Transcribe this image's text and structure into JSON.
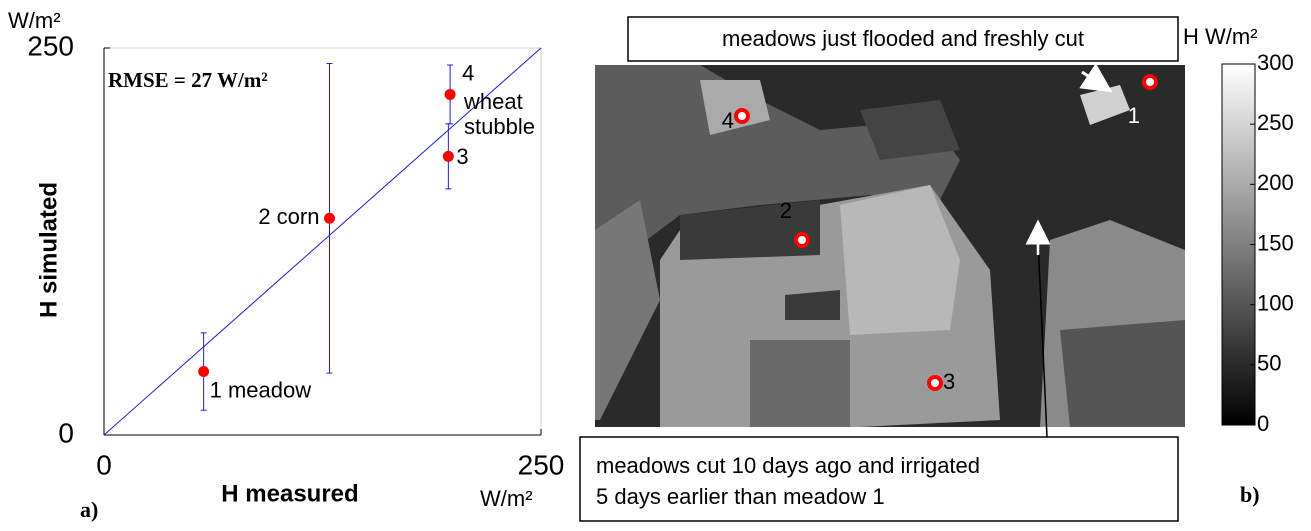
{
  "chart_data": [
    {
      "type": "scatter",
      "ylabel": "H simulated",
      "xlabel": "H measured",
      "y_unit": "W/m²",
      "x_unit": "W/m²",
      "annotation": "RMSE = 27 W/m²",
      "panel_label": "a)",
      "xlim": [
        0,
        250
      ],
      "ylim": [
        0,
        250
      ],
      "xticks": [
        0,
        250
      ],
      "yticks": [
        0,
        250
      ],
      "series": [
        {
          "color": "#ff0000",
          "errorbar_color": "#1f1fd0",
          "x": [
            57,
            129,
            197,
            198
          ],
          "values": [
            41,
            140,
            180,
            220
          ],
          "errors": [
            25,
            100,
            21,
            19
          ],
          "labels": [
            "1 meadow",
            "2 corn",
            "3",
            "4"
          ]
        }
      ],
      "label_note": [
        "wheat",
        "stubble"
      ],
      "identity_line_color": "#1f1fd0"
    },
    {
      "type": "image",
      "colorbar_label": "H W/m²",
      "clim": [
        0,
        300
      ],
      "cticks": [
        0,
        50,
        100,
        150,
        200,
        250,
        300
      ],
      "colormap": [
        "#000000",
        "#ffffff"
      ],
      "sites": [
        "1",
        "2",
        "3",
        "4"
      ],
      "annotations": [
        "meadows just flooded and freshly cut",
        "meadows cut 10 days ago and irrigated",
        "5 days earlier than meadow 1"
      ],
      "panel_label": "b)"
    }
  ]
}
